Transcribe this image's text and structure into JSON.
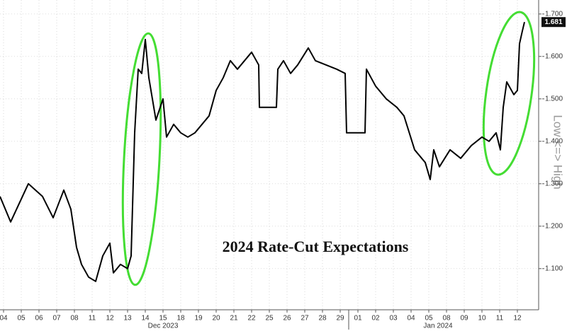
{
  "chart_data": {
    "type": "line",
    "title": "2024 Rate-Cut Expectations",
    "y_axis_label": "Low <=> High",
    "month_labels": [
      "Dec 2023",
      "Jan 2024"
    ],
    "last_value_label": "1.681",
    "grid": true,
    "color": "#000000",
    "xlim": [
      -0.2,
      30.2
    ],
    "ylim": [
      1.003,
      1.733
    ],
    "xticks": [
      {
        "value": 0,
        "label": "04"
      },
      {
        "value": 1,
        "label": "05"
      },
      {
        "value": 2,
        "label": "06"
      },
      {
        "value": 3,
        "label": "07"
      },
      {
        "value": 4,
        "label": "08"
      },
      {
        "value": 5,
        "label": "11"
      },
      {
        "value": 6,
        "label": "12"
      },
      {
        "value": 7,
        "label": "13"
      },
      {
        "value": 8,
        "label": "14"
      },
      {
        "value": 9,
        "label": "15"
      },
      {
        "value": 10,
        "label": "18"
      },
      {
        "value": 11,
        "label": "19"
      },
      {
        "value": 12,
        "label": "20"
      },
      {
        "value": 13,
        "label": "21"
      },
      {
        "value": 14,
        "label": "22"
      },
      {
        "value": 15,
        "label": "25"
      },
      {
        "value": 16,
        "label": "26"
      },
      {
        "value": 17,
        "label": "27"
      },
      {
        "value": 18,
        "label": "28"
      },
      {
        "value": 19,
        "label": "29"
      },
      {
        "value": 20,
        "label": "01"
      },
      {
        "value": 21,
        "label": "02"
      },
      {
        "value": 22,
        "label": "03"
      },
      {
        "value": 23,
        "label": "04"
      },
      {
        "value": 24,
        "label": "05"
      },
      {
        "value": 25,
        "label": "08"
      },
      {
        "value": 26,
        "label": "09"
      },
      {
        "value": 27,
        "label": "10"
      },
      {
        "value": 28,
        "label": "11"
      },
      {
        "value": 29,
        "label": "12"
      }
    ],
    "yticks": [
      {
        "value": 1.1,
        "label": "1.100"
      },
      {
        "value": 1.2,
        "label": "1.200"
      },
      {
        "value": 1.3,
        "label": "1.300"
      },
      {
        "value": 1.4,
        "label": "1.400"
      },
      {
        "value": 1.5,
        "label": "1.500"
      },
      {
        "value": 1.6,
        "label": "1.600"
      },
      {
        "value": 1.7,
        "label": "1.700"
      }
    ],
    "x": [
      -0.2,
      0.4,
      1.4,
      2.2,
      2.8,
      3.4,
      3.8,
      4.12,
      4.4,
      4.8,
      5.2,
      5.6,
      6,
      6.2,
      6.6,
      7,
      7.2,
      7.4,
      7.6,
      7.8,
      8,
      8.2,
      8.4,
      8.6,
      9,
      9.2,
      9.6,
      10,
      10.4,
      10.8,
      11.2,
      11.6,
      12,
      12.4,
      12.8,
      13.2,
      13.6,
      14,
      14.4,
      14.44,
      15.4,
      15.48,
      15.8,
      16.2,
      16.6,
      17.2,
      17.6,
      18.2,
      18.8,
      19.28,
      19.36,
      20.4,
      20.48,
      21,
      21.6,
      22.2,
      22.6,
      23.2,
      23.8,
      24.08,
      24.28,
      24.6,
      25.2,
      25.8,
      26.4,
      27,
      27.4,
      27.8,
      28.04,
      28.2,
      28.4,
      28.8,
      29,
      29.12,
      29.28,
      29.4
    ],
    "values": [
      1.27,
      1.21,
      1.3,
      1.27,
      1.22,
      1.285,
      1.24,
      1.15,
      1.11,
      1.08,
      1.07,
      1.13,
      1.16,
      1.09,
      1.11,
      1.1,
      1.13,
      1.42,
      1.57,
      1.56,
      1.64,
      1.55,
      1.5,
      1.45,
      1.5,
      1.41,
      1.44,
      1.42,
      1.41,
      1.42,
      1.44,
      1.46,
      1.52,
      1.55,
      1.59,
      1.57,
      1.59,
      1.61,
      1.58,
      1.48,
      1.48,
      1.57,
      1.59,
      1.56,
      1.58,
      1.62,
      1.59,
      1.58,
      1.57,
      1.56,
      1.42,
      1.42,
      1.57,
      1.53,
      1.5,
      1.48,
      1.46,
      1.38,
      1.35,
      1.31,
      1.38,
      1.34,
      1.38,
      1.36,
      1.39,
      1.41,
      1.4,
      1.42,
      1.38,
      1.48,
      1.54,
      1.51,
      1.52,
      1.63,
      1.66,
      1.681
    ]
  }
}
